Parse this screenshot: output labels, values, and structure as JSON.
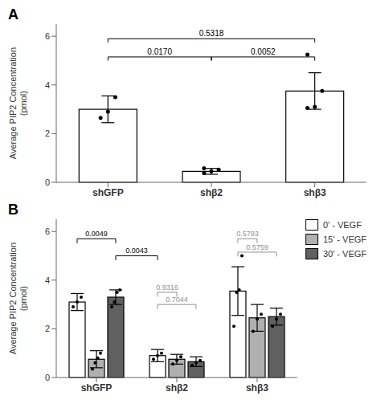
{
  "chart_data": [
    {
      "type": "bar",
      "title": "A",
      "categories": [
        "shGFP",
        "shβ2",
        "shβ3"
      ],
      "values": [
        3.0,
        0.45,
        3.75
      ],
      "errors": [
        0.55,
        0.12,
        0.75
      ],
      "points": [
        [
          2.65,
          2.9,
          3.5
        ],
        [
          0.38,
          0.45,
          0.52,
          0.58
        ],
        [
          3.05,
          3.1,
          3.75,
          5.25
        ]
      ],
      "colors": [
        "white",
        "white",
        "white"
      ],
      "ylabel": "Average PIP2 Concentration\n(pmol)",
      "ylim": [
        0,
        6.5
      ],
      "yticks": [
        0,
        2,
        4,
        6
      ],
      "grid": false,
      "annotations": [
        {
          "from": 0,
          "to": 1,
          "y": 5.15,
          "label": "0.0170",
          "color": "black"
        },
        {
          "from": 1,
          "to": 2,
          "y": 5.15,
          "label": "0.0052",
          "color": "black"
        },
        {
          "from": 0,
          "to": 2,
          "y": 5.9,
          "label": "0.5318",
          "color": "black"
        }
      ]
    },
    {
      "type": "bar",
      "title": "B",
      "categories": [
        "shGFP",
        "shβ2",
        "shβ3"
      ],
      "series": [
        {
          "name": "0' - VEGF",
          "color": "white",
          "values": [
            3.1,
            0.9,
            3.55
          ],
          "errors": [
            0.35,
            0.25,
            1.0
          ],
          "points": [
            [
              2.9,
              3.1,
              3.3
            ],
            [
              0.75,
              0.9,
              1.0
            ],
            [
              2.1,
              3.5,
              3.6,
              5.0
            ]
          ]
        },
        {
          "name": "15' - VEGF",
          "color": "#b0b0b0",
          "values": [
            0.75,
            0.75,
            2.45
          ],
          "errors": [
            0.35,
            0.2,
            0.55
          ],
          "points": [
            [
              0.35,
              0.6,
              0.8,
              1.0
            ],
            [
              0.55,
              0.7,
              0.85
            ],
            [
              1.9,
              2.4,
              2.6
            ]
          ]
        },
        {
          "name": "30' - VEGF",
          "color": "#606060",
          "values": [
            3.3,
            0.65,
            2.5
          ],
          "errors": [
            0.3,
            0.2,
            0.35
          ],
          "points": [
            [
              2.9,
              3.1,
              3.5,
              3.6
            ],
            [
              0.5,
              0.6,
              0.7
            ],
            [
              2.1,
              2.4,
              2.6
            ]
          ]
        }
      ],
      "ylabel": "Average PIP2 Concentration\n(pmol)",
      "ylim": [
        0,
        6.5
      ],
      "yticks": [
        0,
        2,
        4,
        6
      ],
      "grid": false,
      "legend": "right",
      "annotations": [
        {
          "from": [
            0,
            0
          ],
          "to": [
            0,
            2
          ],
          "y": 5.7,
          "label": "0.0049",
          "color": "black"
        },
        {
          "from": [
            0,
            2
          ],
          "to": [
            1,
            0
          ],
          "y": 5.0,
          "label": "0.0043",
          "color": "black"
        },
        {
          "from": [
            1,
            0
          ],
          "to": [
            1,
            1
          ],
          "y": 3.5,
          "label": "0.9316",
          "color": "#909090"
        },
        {
          "from": [
            1,
            0
          ],
          "to": [
            1,
            2
          ],
          "y": 3.0,
          "label": "0.7044",
          "color": "#909090"
        },
        {
          "from": [
            2,
            0
          ],
          "to": [
            2,
            1
          ],
          "y": 5.7,
          "label": "0.5793",
          "color": "#909090"
        },
        {
          "from": [
            2,
            0
          ],
          "to": [
            2,
            2
          ],
          "y": 5.15,
          "label": "0.5759",
          "color": "#909090"
        }
      ]
    }
  ]
}
